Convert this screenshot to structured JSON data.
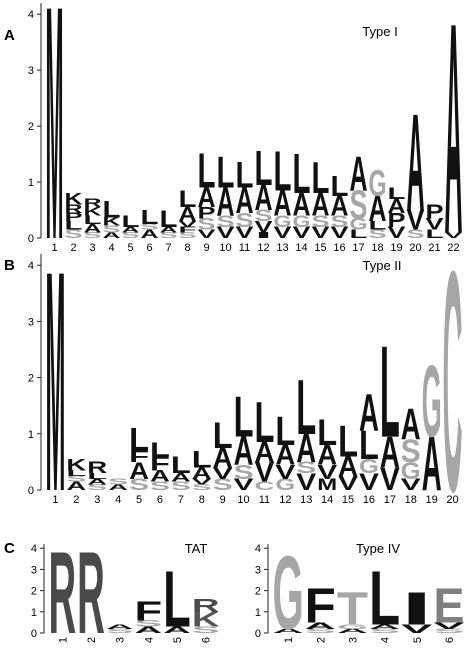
{
  "chart_data": [
    {
      "type": "logo",
      "label": "A",
      "title": "Type I",
      "ylim": [
        0,
        4.2
      ],
      "yticks": [
        0,
        1,
        2,
        3,
        4
      ],
      "color": "#111111",
      "letter_colors": [
        {
          "letter": "G",
          "color": "#a6a6a6"
        },
        {
          "letter": "S",
          "color": "#a6a6a6"
        },
        {
          "letter": "C",
          "color": "#a6a6a6"
        },
        {
          "letter": "T",
          "color": "#a6a6a6"
        }
      ],
      "categories": [
        "1",
        "2",
        "3",
        "4",
        "5",
        "6",
        "7",
        "8",
        "9",
        "10",
        "11",
        "12",
        "13",
        "14",
        "15",
        "16",
        "17",
        "18",
        "19",
        "20",
        "21",
        "22"
      ],
      "stacks": [
        {
          "letters": [
            "M"
          ],
          "heights": [
            4.1
          ]
        },
        {
          "letters": [
            "S",
            "L",
            "P",
            "R",
            "K"
          ],
          "heights": [
            0.15,
            0.15,
            0.15,
            0.15,
            0.2
          ]
        },
        {
          "letters": [
            "S",
            "A",
            "L",
            "K",
            "R"
          ],
          "heights": [
            0.1,
            0.15,
            0.15,
            0.15,
            0.15
          ]
        },
        {
          "letters": [
            "A",
            "S",
            "K",
            "L"
          ],
          "heights": [
            0.1,
            0.12,
            0.15,
            0.3
          ]
        },
        {
          "letters": [
            "S",
            "A",
            "L"
          ],
          "heights": [
            0.1,
            0.1,
            0.2
          ]
        },
        {
          "letters": [
            "A",
            "S",
            "L"
          ],
          "heights": [
            0.15,
            0.1,
            0.25
          ]
        },
        {
          "letters": [
            "S",
            "A",
            "L"
          ],
          "heights": [
            0.1,
            0.1,
            0.3
          ]
        },
        {
          "letters": [
            "S",
            "F",
            "V",
            "A",
            "L"
          ],
          "heights": [
            0.1,
            0.1,
            0.1,
            0.25,
            0.3
          ]
        },
        {
          "letters": [
            "V",
            "S",
            "P",
            "A",
            "L"
          ],
          "heights": [
            0.15,
            0.2,
            0.2,
            0.35,
            0.6
          ]
        },
        {
          "letters": [
            "V",
            "S",
            "A",
            "L"
          ],
          "heights": [
            0.2,
            0.2,
            0.5,
            0.55
          ]
        },
        {
          "letters": [
            "V",
            "S",
            "A",
            "L"
          ],
          "heights": [
            0.2,
            0.25,
            0.45,
            0.45
          ]
        },
        {
          "letters": [
            "I",
            "V",
            "S",
            "A",
            "L"
          ],
          "heights": [
            0.1,
            0.2,
            0.2,
            0.45,
            0.6
          ]
        },
        {
          "letters": [
            "V",
            "G",
            "A",
            "L"
          ],
          "heights": [
            0.2,
            0.2,
            0.45,
            0.7
          ]
        },
        {
          "letters": [
            "V",
            "G",
            "A",
            "L"
          ],
          "heights": [
            0.2,
            0.2,
            0.4,
            0.7
          ]
        },
        {
          "letters": [
            "V",
            "S",
            "A",
            "L"
          ],
          "heights": [
            0.2,
            0.2,
            0.4,
            0.55
          ]
        },
        {
          "letters": [
            "V",
            "S",
            "A",
            "L"
          ],
          "heights": [
            0.2,
            0.2,
            0.35,
            0.35
          ]
        },
        {
          "letters": [
            "L",
            "G",
            "S",
            "A"
          ],
          "heights": [
            0.15,
            0.2,
            0.5,
            0.6
          ]
        },
        {
          "letters": [
            "S",
            "L",
            "A",
            "G"
          ],
          "heights": [
            0.15,
            0.15,
            0.45,
            0.45
          ]
        },
        {
          "letters": [
            "V",
            "P",
            "A",
            "L"
          ],
          "heights": [
            0.2,
            0.25,
            0.25,
            0.2
          ]
        },
        {
          "letters": [
            "S",
            "V",
            "A"
          ],
          "heights": [
            0.15,
            0.35,
            1.7
          ]
        },
        {
          "letters": [
            "L",
            "V",
            "P"
          ],
          "heights": [
            0.15,
            0.2,
            0.25
          ]
        },
        {
          "letters": [
            "V",
            "A"
          ],
          "heights": [
            0.1,
            3.7
          ]
        }
      ]
    },
    {
      "type": "logo",
      "label": "B",
      "title": "Type II",
      "ylim": [
        0,
        4.2
      ],
      "yticks": [
        0,
        1,
        2,
        3,
        4
      ],
      "color": "#111111",
      "letter_colors": [
        {
          "letter": "G",
          "color": "#a6a6a6"
        },
        {
          "letter": "S",
          "color": "#a6a6a6"
        },
        {
          "letter": "C",
          "color": "#a6a6a6"
        },
        {
          "letter": "T",
          "color": "#a6a6a6"
        }
      ],
      "categories": [
        "1",
        "2",
        "3",
        "4",
        "5",
        "6",
        "7",
        "8",
        "9",
        "10",
        "11",
        "12",
        "13",
        "14",
        "15",
        "16",
        "17",
        "18",
        "19",
        "20"
      ],
      "stacks": [
        {
          "letters": [
            "M"
          ],
          "heights": [
            3.85
          ]
        },
        {
          "letters": [
            "A",
            "S",
            "L",
            "K"
          ],
          "heights": [
            0.15,
            0.1,
            0.1,
            0.2
          ]
        },
        {
          "letters": [
            "S",
            "A",
            "L",
            "R"
          ],
          "heights": [
            0.1,
            0.1,
            0.1,
            0.2
          ]
        },
        {
          "letters": [
            "A",
            "S"
          ],
          "heights": [
            0.1,
            0.1
          ]
        },
        {
          "letters": [
            "S",
            "A",
            "F",
            "L"
          ],
          "heights": [
            0.2,
            0.3,
            0.2,
            0.4
          ]
        },
        {
          "letters": [
            "S",
            "A",
            "F",
            "L"
          ],
          "heights": [
            0.15,
            0.2,
            0.25,
            0.25
          ]
        },
        {
          "letters": [
            "S",
            "A",
            "L"
          ],
          "heights": [
            0.15,
            0.15,
            0.3
          ]
        },
        {
          "letters": [
            "S",
            "V",
            "A",
            "L"
          ],
          "heights": [
            0.1,
            0.1,
            0.2,
            0.3
          ]
        },
        {
          "letters": [
            "S",
            "V",
            "A",
            "L"
          ],
          "heights": [
            0.2,
            0.2,
            0.35,
            0.45
          ]
        },
        {
          "letters": [
            "V",
            "S",
            "A",
            "L"
          ],
          "heights": [
            0.2,
            0.25,
            0.5,
            0.7
          ]
        },
        {
          "letters": [
            "C",
            "V",
            "A",
            "L"
          ],
          "heights": [
            0.15,
            0.35,
            0.35,
            0.7
          ]
        },
        {
          "letters": [
            "G",
            "V",
            "A",
            "L"
          ],
          "heights": [
            0.2,
            0.25,
            0.35,
            0.5
          ]
        },
        {
          "letters": [
            "V",
            "S",
            "A",
            "L"
          ],
          "heights": [
            0.3,
            0.2,
            0.5,
            0.95
          ]
        },
        {
          "letters": [
            "M",
            "V",
            "A",
            "L"
          ],
          "heights": [
            0.2,
            0.25,
            0.35,
            0.45
          ]
        },
        {
          "letters": [
            "V",
            "A",
            "L"
          ],
          "heights": [
            0.25,
            0.35,
            0.55
          ]
        },
        {
          "letters": [
            "V",
            "G",
            "L",
            "A"
          ],
          "heights": [
            0.3,
            0.25,
            0.5,
            0.65
          ]
        },
        {
          "letters": [
            "V",
            "A",
            "L"
          ],
          "heights": [
            0.4,
            0.55,
            1.6
          ]
        },
        {
          "letters": [
            "V",
            "G",
            "S",
            "A"
          ],
          "heights": [
            0.2,
            0.3,
            0.4,
            0.55
          ]
        },
        {
          "letters": [
            "A",
            "G"
          ],
          "heights": [
            0.95,
            1.25
          ]
        },
        {
          "letters": [
            "C"
          ],
          "heights": [
            3.85
          ]
        }
      ]
    },
    {
      "type": "logo",
      "label": "C",
      "title": "TAT",
      "ylim": [
        0,
        4.2
      ],
      "yticks": [
        0,
        1,
        2,
        3,
        4
      ],
      "color": "#111111",
      "letter_colors": [
        {
          "letter": "R",
          "color": "#4a4a4a"
        },
        {
          "letter": "K",
          "color": "#555555"
        },
        {
          "letter": "S",
          "color": "#a6a6a6"
        }
      ],
      "categories": [
        "1",
        "2",
        "3",
        "4",
        "5",
        "6"
      ],
      "stacks": [
        {
          "letters": [
            "R"
          ],
          "heights": [
            3.8
          ]
        },
        {
          "letters": [
            "R"
          ],
          "heights": [
            3.8
          ]
        },
        {
          "letters": [
            "S",
            "A"
          ],
          "heights": [
            0.2,
            0.2
          ]
        },
        {
          "letters": [
            "A",
            "S",
            "F"
          ],
          "heights": [
            0.3,
            0.3,
            0.9
          ]
        },
        {
          "letters": [
            "A",
            "L"
          ],
          "heights": [
            0.3,
            2.6
          ]
        },
        {
          "letters": [
            "S",
            "K",
            "R"
          ],
          "heights": [
            0.3,
            0.7,
            0.6
          ]
        }
      ]
    },
    {
      "type": "logo",
      "title": "Type IV",
      "ylim": [
        0,
        4.2
      ],
      "yticks": [
        0,
        1,
        2,
        3,
        4
      ],
      "color": "#111111",
      "letter_colors": [
        {
          "letter": "G",
          "color": "#a6a6a6"
        },
        {
          "letter": "T",
          "color": "#a6a6a6"
        },
        {
          "letter": "S",
          "color": "#a6a6a6"
        },
        {
          "letter": "E",
          "color": "#808080"
        }
      ],
      "categories": [
        "1",
        "2",
        "3",
        "4",
        "5",
        "6"
      ],
      "stacks": [
        {
          "letters": [
            "A",
            "G"
          ],
          "heights": [
            0.2,
            3.4
          ]
        },
        {
          "letters": [
            "S",
            "A",
            "F"
          ],
          "heights": [
            0.2,
            0.3,
            1.6
          ]
        },
        {
          "letters": [
            "A",
            "G",
            "T"
          ],
          "heights": [
            0.2,
            0.2,
            1.5
          ]
        },
        {
          "letters": [
            "S",
            "A",
            "L"
          ],
          "heights": [
            0.2,
            0.2,
            2.5
          ]
        },
        {
          "letters": [
            "V",
            "I"
          ],
          "heights": [
            0.4,
            1.5
          ]
        },
        {
          "letters": [
            "S",
            "V",
            "E"
          ],
          "heights": [
            0.2,
            0.3,
            1.6
          ]
        }
      ]
    }
  ]
}
